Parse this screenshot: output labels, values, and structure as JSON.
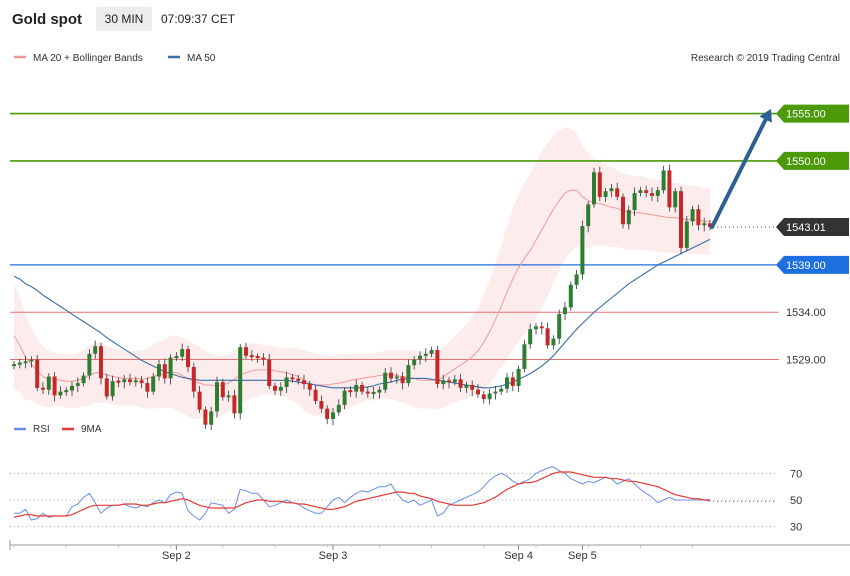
{
  "header": {
    "title": "Gold spot",
    "interval": "30 MIN",
    "time": "07:09:37 CET"
  },
  "legend": {
    "ma20": "MA 20 + Bollinger Bands",
    "ma50": "MA 50",
    "rsi": "RSI",
    "rsi_ma": "9MA"
  },
  "copyright": "Research © 2019 Trading Central",
  "colors": {
    "bull": "#2e7d32",
    "bear": "#c62828",
    "ma20": "#ef9a9a",
    "bands_fill": "#fdecec",
    "ma50": "#3a6ea5",
    "target_green": "#4a9a0a",
    "support_blue": "#1e6fe0",
    "resistance_red": "#e57373",
    "current": "#333333",
    "arrow": "#2b5f96",
    "rsi": "#6a8fe8",
    "rsi_ma": "#e53935"
  },
  "chart_data": [
    {
      "type": "candlestick",
      "ylim": [
        1524.5,
        1557.5
      ],
      "date_ticks": [
        {
          "label": "Sep 2",
          "index": 28
        },
        {
          "label": "Sep 3",
          "index": 55
        },
        {
          "label": "Sep 4",
          "index": 87
        },
        {
          "label": "Sep 5",
          "index": 98
        }
      ],
      "closes": [
        1528.5,
        1528.6,
        1528.8,
        1529.0,
        1526.0,
        1525.8,
        1527.2,
        1525.2,
        1525.6,
        1525.7,
        1526.2,
        1526.5,
        1527.3,
        1529.6,
        1530.4,
        1527.0,
        1525.1,
        1526.7,
        1526.6,
        1526.9,
        1526.6,
        1526.8,
        1526.5,
        1525.6,
        1527.2,
        1528.5,
        1527.0,
        1529.2,
        1529.3,
        1530.1,
        1528.2,
        1525.6,
        1523.7,
        1522.1,
        1523.5,
        1526.6,
        1525.0,
        1525.2,
        1523.3,
        1530.3,
        1529.4,
        1529.3,
        1529.2,
        1529.0,
        1526.2,
        1525.7,
        1526.1,
        1527.1,
        1526.9,
        1526.8,
        1526.4,
        1525.8,
        1524.6,
        1523.8,
        1522.7,
        1523.4,
        1524.2,
        1525.7,
        1525.6,
        1526.3,
        1525.6,
        1525.4,
        1525.5,
        1525.8,
        1527.6,
        1527.0,
        1527.2,
        1526.5,
        1528.4,
        1529.0,
        1529.4,
        1529.6,
        1530.0,
        1526.4,
        1526.8,
        1526.6,
        1526.9,
        1526.0,
        1526.3,
        1525.8,
        1525.3,
        1524.8,
        1525.4,
        1525.6,
        1525.9,
        1527.1,
        1526.2,
        1528.0,
        1530.6,
        1532.2,
        1532.5,
        1532.3,
        1530.5,
        1531.2,
        1533.8,
        1534.5,
        1536.9,
        1538.0,
        1543.1,
        1545.4,
        1548.8,
        1546.2,
        1546.8,
        1547.1,
        1546.2,
        1543.3,
        1544.8,
        1546.6,
        1546.9,
        1546.6,
        1546.3,
        1546.9,
        1549.0,
        1545.1,
        1546.8,
        1540.8,
        1543.6,
        1544.9,
        1543.2,
        1543.4,
        1543.01
      ],
      "ma20": [
        1531.5,
        1530.5,
        1529.2,
        1528.5,
        1527.8,
        1527.2,
        1526.9,
        1526.9,
        1526.8,
        1526.7,
        1526.7,
        1526.8,
        1527.0,
        1527.3,
        1527.6,
        1527.6,
        1527.4,
        1527.2,
        1527.1,
        1527.0,
        1527.0,
        1527.0,
        1526.9,
        1527.0,
        1527.2,
        1527.4,
        1527.5,
        1527.7,
        1527.6,
        1527.3,
        1527.0,
        1526.7,
        1526.5,
        1526.3,
        1526.3,
        1526.2,
        1526.3,
        1526.5,
        1526.9,
        1527.4,
        1527.6,
        1527.8,
        1527.9,
        1527.9,
        1527.9,
        1527.8,
        1527.7,
        1527.6,
        1527.4,
        1527.2,
        1526.8,
        1526.5,
        1526.3,
        1526.3,
        1526.3,
        1526.4,
        1526.5,
        1526.6,
        1526.8,
        1526.9,
        1527.0,
        1527.1,
        1527.2,
        1527.3,
        1527.4,
        1527.4,
        1527.3,
        1527.2,
        1527.1,
        1527.0,
        1526.8,
        1526.8,
        1526.8,
        1526.8,
        1527.1,
        1527.6,
        1528.0,
        1528.4,
        1528.8,
        1529.3,
        1529.9,
        1530.8,
        1531.9,
        1533.2,
        1534.6,
        1536.1,
        1537.5,
        1538.7,
        1539.7,
        1540.5,
        1541.6,
        1542.7,
        1543.8,
        1544.9,
        1545.8,
        1546.6,
        1546.9,
        1546.9,
        1546.2,
        1545.8,
        1545.6,
        1545.5,
        1545.3,
        1545.1,
        1545.0,
        1544.7,
        1544.6,
        1544.5,
        1544.5,
        1544.4,
        1544.3,
        1544.2,
        1544.1,
        1544.0,
        1544.0,
        1543.9,
        1543.8,
        1543.8,
        1543.7,
        1543.6,
        1543.6
      ],
      "band_width": [
        5.5,
        5.0,
        4.5,
        3.8,
        3.5,
        3.2,
        3.0,
        2.8,
        2.8,
        2.8,
        2.8,
        2.9,
        3.0,
        3.2,
        3.2,
        3.2,
        3.0,
        3.0,
        2.9,
        2.9,
        2.9,
        2.9,
        3.0,
        3.2,
        3.4,
        3.5,
        3.6,
        3.8,
        3.9,
        4.0,
        4.0,
        4.0,
        3.8,
        3.6,
        3.3,
        3.2,
        3.1,
        3.0,
        3.0,
        3.0,
        3.0,
        2.9,
        2.8,
        2.6,
        2.6,
        2.6,
        2.5,
        2.6,
        2.8,
        3.0,
        3.2,
        3.3,
        3.3,
        3.2,
        3.1,
        3.0,
        3.0,
        2.9,
        2.8,
        2.7,
        2.6,
        2.5,
        2.5,
        2.5,
        2.5,
        2.6,
        2.7,
        2.8,
        2.9,
        3.0,
        3.0,
        3.0,
        3.0,
        3.1,
        3.2,
        3.3,
        3.5,
        3.7,
        3.9,
        4.2,
        4.6,
        5.0,
        5.5,
        6.0,
        6.5,
        7.0,
        7.5,
        7.8,
        8.0,
        8.2,
        8.3,
        8.3,
        8.1,
        7.8,
        7.4,
        7.0,
        6.5,
        6.0,
        5.4,
        5.0,
        4.6,
        4.4,
        4.3,
        4.2,
        4.1,
        4.0,
        4.0,
        3.9,
        3.9,
        3.8,
        3.8,
        3.8,
        3.8,
        3.7,
        3.7,
        3.7,
        3.6,
        3.6,
        3.6,
        3.5,
        3.5
      ],
      "ma50": [
        1537.8,
        1537.5,
        1537.0,
        1536.7,
        1536.3,
        1535.8,
        1535.4,
        1535.0,
        1534.6,
        1534.2,
        1533.8,
        1533.4,
        1533.0,
        1532.6,
        1532.2,
        1531.8,
        1531.3,
        1530.9,
        1530.5,
        1530.1,
        1529.7,
        1529.3,
        1528.9,
        1528.6,
        1528.3,
        1528.0,
        1527.7,
        1527.5,
        1527.3,
        1527.1,
        1527.0,
        1526.9,
        1526.8,
        1526.8,
        1526.8,
        1526.8,
        1526.8,
        1526.8,
        1526.8,
        1526.8,
        1526.8,
        1526.8,
        1526.8,
        1526.8,
        1526.8,
        1526.8,
        1526.8,
        1526.8,
        1526.7,
        1526.6,
        1526.5,
        1526.4,
        1526.3,
        1526.2,
        1526.1,
        1526.0,
        1526.0,
        1526.0,
        1526.0,
        1526.0,
        1526.0,
        1526.1,
        1526.2,
        1526.4,
        1526.5,
        1526.6,
        1526.8,
        1526.9,
        1527.0,
        1527.0,
        1527.0,
        1527.0,
        1526.9,
        1526.8,
        1526.7,
        1526.6,
        1526.5,
        1526.4,
        1526.3,
        1526.2,
        1526.1,
        1526.0,
        1526.0,
        1526.1,
        1526.2,
        1526.4,
        1526.6,
        1526.9,
        1527.2,
        1527.5,
        1527.9,
        1528.3,
        1528.8,
        1529.4,
        1530.1,
        1530.8,
        1531.5,
        1532.2,
        1532.8,
        1533.4,
        1534.0,
        1534.5,
        1535.0,
        1535.5,
        1536.0,
        1536.5,
        1537.0,
        1537.4,
        1537.8,
        1538.2,
        1538.6,
        1539.0,
        1539.3,
        1539.6,
        1539.9,
        1540.2,
        1540.5,
        1540.8,
        1541.1,
        1541.4,
        1541.7
      ],
      "levels": [
        {
          "value": 1555.0,
          "label": "1555.00",
          "kind": "target"
        },
        {
          "value": 1550.0,
          "label": "1550.00",
          "kind": "target"
        },
        {
          "value": 1543.01,
          "label": "1543.01",
          "kind": "current"
        },
        {
          "value": 1539.0,
          "label": "1539.00",
          "kind": "pivot"
        },
        {
          "value": 1534.0,
          "label": "1534.00",
          "kind": "resistance"
        },
        {
          "value": 1529.0,
          "label": "1529.00",
          "kind": "resistance"
        }
      ],
      "arrow": {
        "from": 1543.0,
        "to": 1555.5
      }
    },
    {
      "type": "line",
      "ylim": [
        20,
        95
      ],
      "yticks": [
        30,
        50,
        70
      ],
      "series": [
        {
          "name": "RSI",
          "values": [
            40,
            40,
            43,
            35,
            36,
            40,
            37,
            38,
            38,
            38,
            45,
            47,
            52,
            55,
            48,
            40,
            44,
            46,
            46,
            47,
            45,
            44,
            46,
            45,
            48,
            50,
            48,
            54,
            56,
            55,
            42,
            38,
            35,
            40,
            48,
            47,
            46,
            40,
            43,
            58,
            57,
            55,
            55,
            50,
            45,
            46,
            48,
            50,
            48,
            47,
            44,
            42,
            40,
            40,
            45,
            50,
            52,
            48,
            52,
            55,
            57,
            56,
            58,
            60,
            60,
            62,
            55,
            50,
            48,
            50,
            46,
            48,
            50,
            38,
            40,
            46,
            48,
            50,
            52,
            54,
            56,
            60,
            65,
            68,
            70,
            68,
            64,
            62,
            64,
            66,
            70,
            72,
            74,
            75,
            72,
            70,
            66,
            64,
            62,
            64,
            63,
            65,
            67,
            66,
            62,
            64,
            66,
            62,
            58,
            55,
            52,
            48,
            50,
            52,
            50,
            50,
            50,
            50,
            50,
            50,
            49
          ]
        },
        {
          "name": "9MA",
          "values": [
            37,
            38,
            39,
            39,
            38,
            38,
            38,
            38,
            38,
            38,
            39,
            41,
            43,
            45,
            46,
            46,
            46,
            46,
            46,
            47,
            47,
            47,
            46,
            46,
            47,
            48,
            48,
            49,
            50,
            51,
            50,
            48,
            46,
            45,
            44,
            44,
            44,
            44,
            44,
            46,
            48,
            49,
            50,
            50,
            49,
            49,
            49,
            48,
            48,
            47,
            47,
            46,
            45,
            44,
            43,
            43,
            44,
            45,
            47,
            49,
            50,
            51,
            52,
            53,
            54,
            55,
            56,
            56,
            55,
            55,
            53,
            52,
            51,
            49,
            48,
            47,
            46,
            46,
            46,
            46,
            47,
            48,
            50,
            52,
            55,
            58,
            60,
            62,
            63,
            63,
            64,
            66,
            68,
            70,
            71,
            71,
            71,
            70,
            69,
            68,
            67,
            67,
            67,
            66,
            66,
            65,
            64,
            64,
            63,
            62,
            61,
            60,
            58,
            56,
            54,
            53,
            52,
            51,
            51,
            50,
            50
          ]
        }
      ]
    }
  ]
}
